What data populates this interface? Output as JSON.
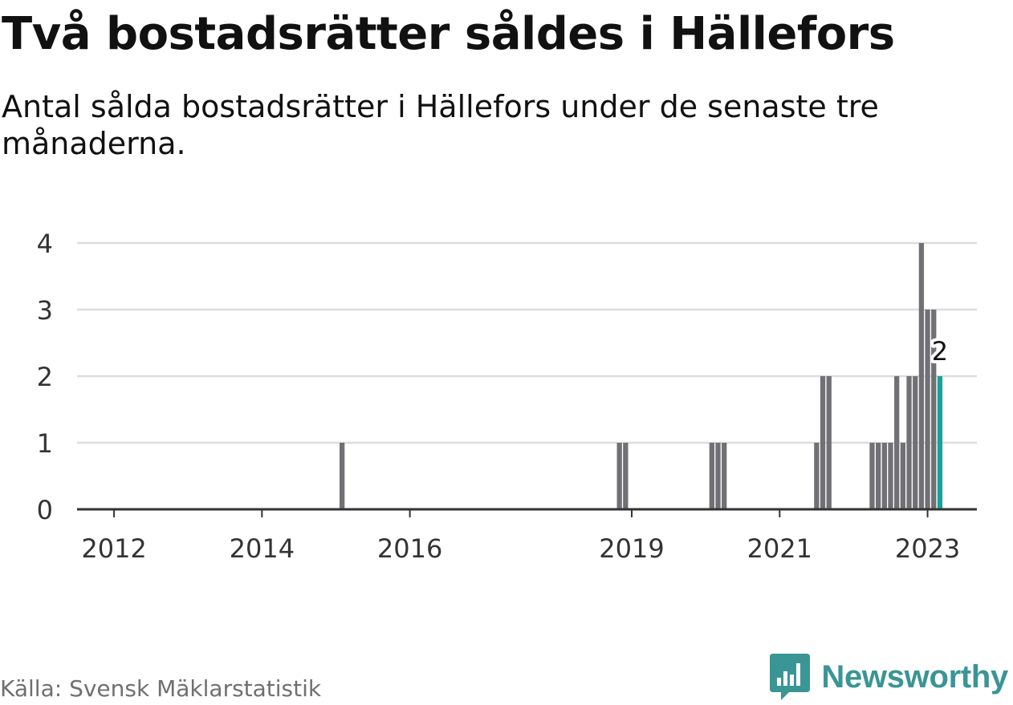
{
  "title": "Två bostadsrätter såldes i Hällefors",
  "subtitle": "Antal sålda bostadsrätter i Hällefors under de senaste tre månaderna.",
  "source": "Källa: Svensk Mäklarstatistik",
  "brand": {
    "name": "Newsworthy",
    "icon": "bar-chart-logo-icon",
    "color": "#3a9595"
  },
  "chart_data": {
    "type": "bar",
    "y_ticks": [
      0,
      1,
      2,
      3,
      4
    ],
    "ylim": [
      0,
      4
    ],
    "x_ticks": [
      {
        "label": "2012",
        "date": "2012-01"
      },
      {
        "label": "2014",
        "date": "2014-01"
      },
      {
        "label": "2016",
        "date": "2016-01"
      },
      {
        "label": "2019",
        "date": "2019-01"
      },
      {
        "label": "2021",
        "date": "2021-01"
      },
      {
        "label": "2023",
        "date": "2023-01"
      }
    ],
    "xlim": [
      "2011-07",
      "2023-09"
    ],
    "colors": {
      "bar": "#707075",
      "highlight": "#17a39a",
      "grid": "#dddddd",
      "axis": "#333333"
    },
    "grid": true,
    "series": [
      {
        "values": [
          {
            "date": "2015-02",
            "value": 1
          },
          {
            "date": "2018-11",
            "value": 1
          },
          {
            "date": "2018-12",
            "value": 1
          },
          {
            "date": "2020-02",
            "value": 1
          },
          {
            "date": "2020-03",
            "value": 1
          },
          {
            "date": "2020-04",
            "value": 1
          },
          {
            "date": "2021-07",
            "value": 1
          },
          {
            "date": "2021-08",
            "value": 2
          },
          {
            "date": "2021-09",
            "value": 2
          },
          {
            "date": "2022-04",
            "value": 1
          },
          {
            "date": "2022-05",
            "value": 1
          },
          {
            "date": "2022-06",
            "value": 1
          },
          {
            "date": "2022-07",
            "value": 1
          },
          {
            "date": "2022-08",
            "value": 2
          },
          {
            "date": "2022-09",
            "value": 1
          },
          {
            "date": "2022-10",
            "value": 2
          },
          {
            "date": "2022-11",
            "value": 2
          },
          {
            "date": "2022-12",
            "value": 4
          },
          {
            "date": "2023-01",
            "value": 3
          },
          {
            "date": "2023-02",
            "value": 3
          },
          {
            "date": "2023-03",
            "value": 2,
            "highlight": true
          }
        ]
      }
    ],
    "annotation": {
      "date": "2023-03",
      "text": "2"
    }
  }
}
